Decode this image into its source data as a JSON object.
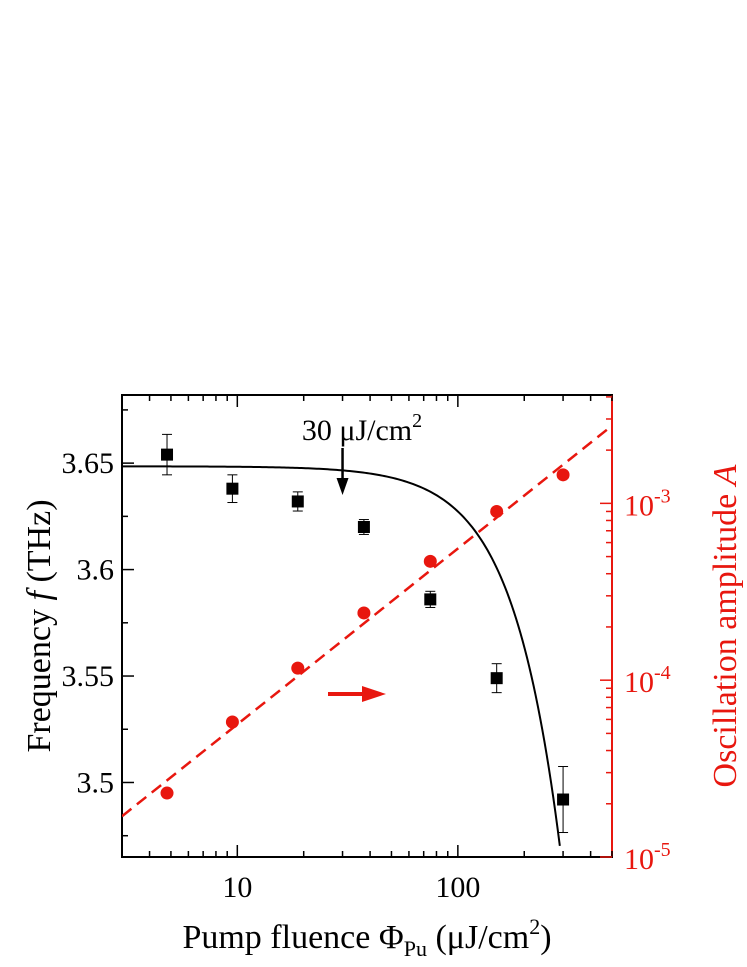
{
  "chart_data": {
    "type": "scatter",
    "x_axis": {
      "label_main": "Pump fluence Φ",
      "label_sub": "Pu",
      "label_unit_pre": " (μJ/cm",
      "label_unit_sup": "2",
      "label_unit_post": ")",
      "scale": "log",
      "range": [
        3,
        500
      ],
      "major_ticks": [
        10,
        100
      ],
      "tick_labels": [
        "10",
        "100"
      ]
    },
    "y_left_axis": {
      "label_pre": "Frequency ",
      "label_var": "f",
      "label_post": " (THz)",
      "scale": "linear",
      "range": [
        3.465,
        3.682
      ],
      "major_ticks": [
        3.5,
        3.55,
        3.6,
        3.65
      ],
      "tick_labels": [
        "3.5",
        "3.55",
        "3.6",
        "3.65"
      ],
      "color": "#000000"
    },
    "y_right_axis": {
      "label_pre": "Oscillation amplitude ",
      "label_var": "A",
      "scale": "log",
      "range": [
        1e-05,
        0.0041
      ],
      "major_ticks": [
        1e-05,
        0.0001,
        0.001
      ],
      "tick_label_base": [
        "10",
        "10",
        "10"
      ],
      "tick_label_exp": [
        "-5",
        "-4",
        "-3"
      ],
      "color": "#e8170f"
    },
    "series": [
      {
        "axis": "left",
        "marker": "square",
        "color": "#000000",
        "x": [
          4.8,
          9.5,
          18.8,
          37.5,
          75,
          150,
          300
        ],
        "y": [
          3.654,
          3.638,
          3.632,
          3.62,
          3.586,
          3.549,
          3.492
        ],
        "error": [
          0.0095,
          0.0065,
          0.0045,
          0.0035,
          0.0038,
          0.0068,
          0.0155
        ]
      },
      {
        "axis": "right",
        "marker": "circle",
        "color": "#e8170f",
        "x": [
          4.8,
          9.5,
          18.8,
          37.5,
          75,
          150,
          300
        ],
        "y": [
          2.3e-05,
          5.8e-05,
          0.000117,
          0.00024,
          0.00047,
          0.0009,
          0.00145
        ]
      }
    ],
    "fits": [
      {
        "axis": "left",
        "style": "solid",
        "color": "#000000",
        "model": "f0 - k*x^2",
        "f0": 3.6485,
        "k": 2.12e-06,
        "x_range": [
          3,
          290
        ]
      },
      {
        "axis": "right",
        "style": "dashed",
        "color": "#e8170f",
        "model": "power law",
        "points": [
          [
            3,
            1.7e-05
          ],
          [
            500,
            0.00275
          ]
        ]
      }
    ],
    "annotations": [
      {
        "id": "threshold",
        "text": "30 μJ/cm",
        "sup": "2",
        "x": 30
      },
      {
        "id": "arrow-right",
        "color": "#e8170f"
      }
    ],
    "grid": false,
    "legend": "none"
  }
}
